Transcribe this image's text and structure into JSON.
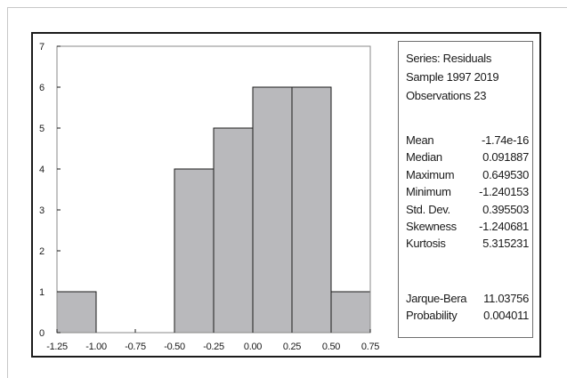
{
  "chart_data": {
    "type": "histogram",
    "bin_edges": [
      -1.25,
      -1.0,
      -0.75,
      -0.5,
      -0.25,
      0.0,
      0.25,
      0.5,
      0.75
    ],
    "counts": [
      1,
      0,
      0,
      4,
      5,
      6,
      6,
      1
    ],
    "x_tick_labels": [
      "-1.25",
      "-1.00",
      "-0.75",
      "-0.50",
      "-0.25",
      "0.00",
      "0.25",
      "0.50",
      "0.75"
    ],
    "y_tick_labels": [
      "0",
      "1",
      "2",
      "3",
      "4",
      "5",
      "6",
      "7"
    ],
    "xlim": [
      -1.25,
      0.75
    ],
    "ylim": [
      0,
      7
    ],
    "bar_color": "#b9b9bc",
    "bar_edge_color": "#1a1a1a",
    "grid": false
  },
  "stats": {
    "header": [
      "Series: Residuals",
      "Sample 1997 2019",
      "Observations 23"
    ],
    "rows": [
      {
        "label": "Mean",
        "value": "-1.74e-16"
      },
      {
        "label": "Median",
        "value": "0.091887"
      },
      {
        "label": "Maximum",
        "value": "0.649530"
      },
      {
        "label": "Minimum",
        "value": "-1.240153"
      },
      {
        "label": "Std. Dev.",
        "value": "0.395503"
      },
      {
        "label": "Skewness",
        "value": "-1.240681"
      },
      {
        "label": "Kurtosis",
        "value": "5.315231"
      }
    ],
    "tests": [
      {
        "label": "Jarque-Bera",
        "value": "11.03756"
      },
      {
        "label": "Probability",
        "value": "0.004011"
      }
    ]
  }
}
